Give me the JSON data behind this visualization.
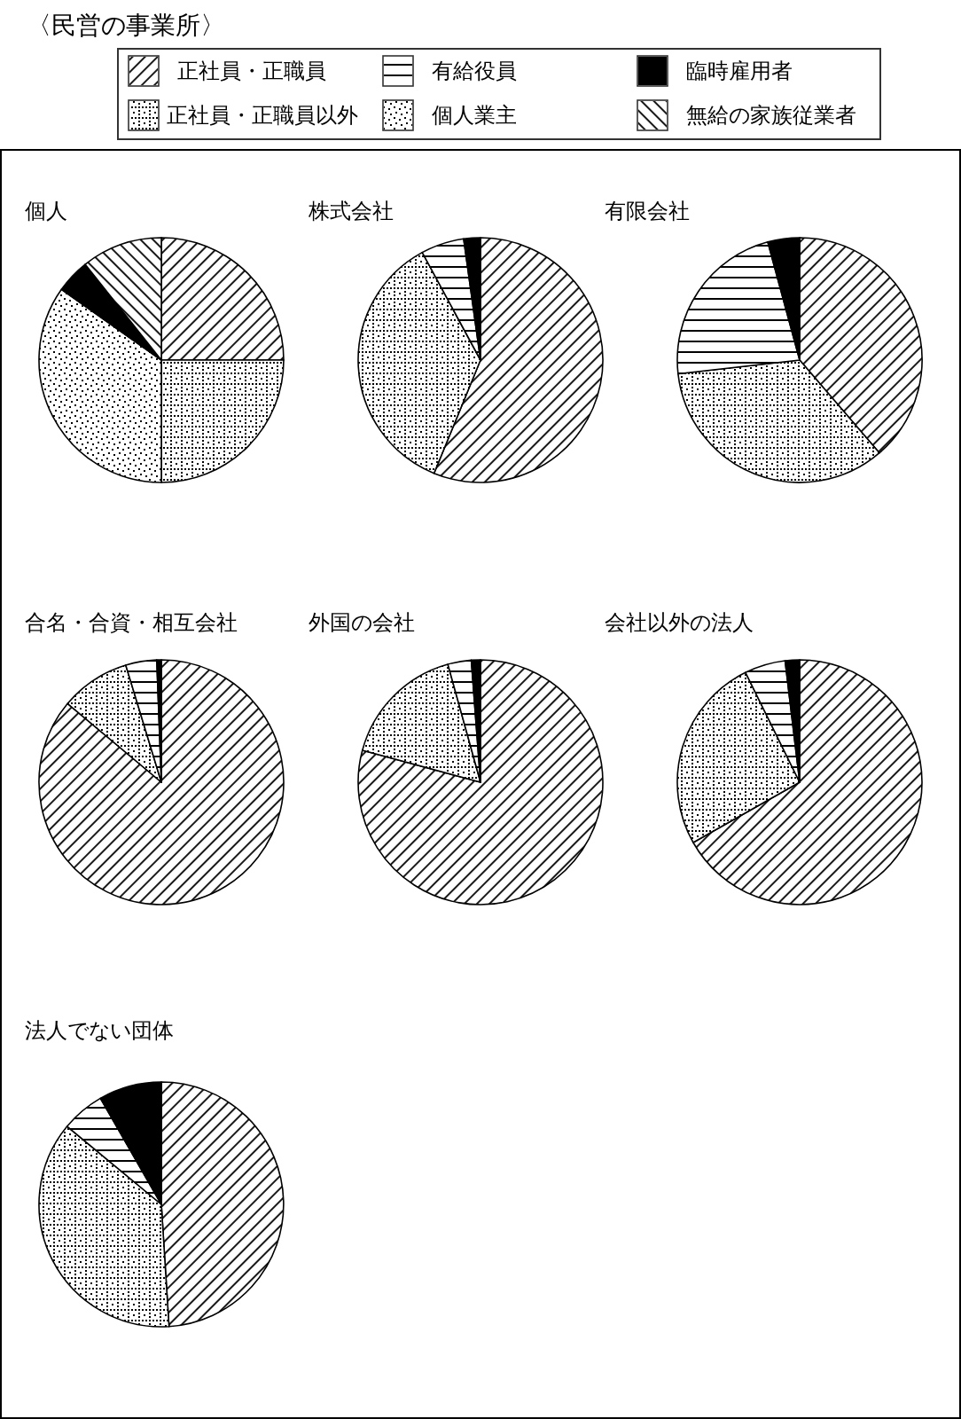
{
  "chart_data": [
    {
      "type": "pie",
      "title": "個人",
      "annotations": [
        "〈民営の事業所〉"
      ],
      "legend": "top",
      "categories": [
        "正社員・正職員",
        "正社員・正職員以外",
        "個人業主",
        "有給役員",
        "臨時雇用者",
        "無給の家族従業者"
      ],
      "values": [
        25.0,
        25.0,
        34.8,
        0,
        4.5,
        10.7
      ]
    },
    {
      "type": "pie",
      "title": "株式会社",
      "values": [
        56.2,
        35.9,
        0,
        5.7,
        2.2,
        0
      ]
    },
    {
      "type": "pie",
      "title": "有限会社",
      "values": [
        38.7,
        34.5,
        0,
        22.6,
        4.2,
        0
      ]
    },
    {
      "type": "pie",
      "title": "合名・合資・相互会社",
      "values": [
        86.1,
        9.2,
        0,
        4.1,
        0.6,
        0
      ]
    },
    {
      "type": "pie",
      "title": "外国の会社",
      "values": [
        79.2,
        16.5,
        0,
        3.1,
        1.2,
        0
      ]
    },
    {
      "type": "pie",
      "title": "会社以外の法人",
      "values": [
        66.8,
        25.9,
        0,
        5.4,
        1.9,
        0
      ]
    },
    {
      "type": "pie",
      "title": "法人でない団体",
      "values": [
        49.0,
        37.0,
        0,
        5.7,
        8.3,
        0
      ]
    }
  ]
}
